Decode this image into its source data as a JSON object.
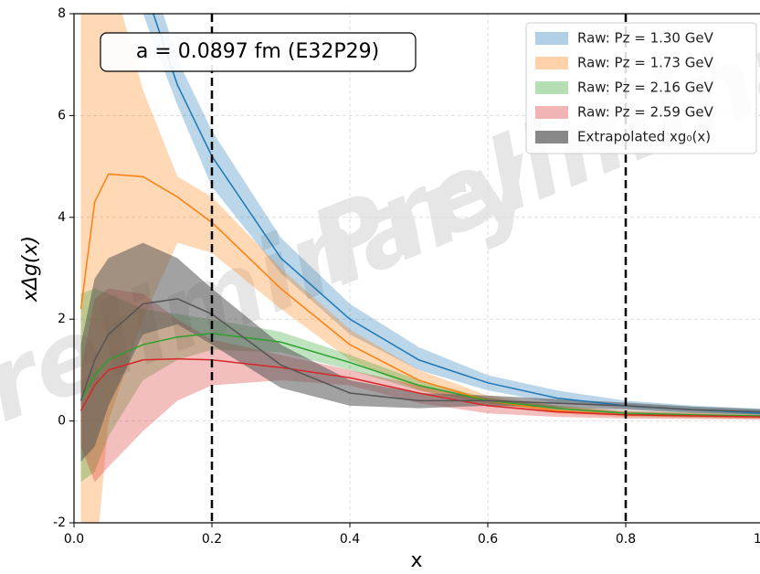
{
  "chart_data": {
    "type": "band",
    "annotation": "a = 0.0897 fm (E32P29)",
    "watermark": "Preliminary",
    "xlabel": "x",
    "ylabel": "xΔg(x)",
    "xlim": [
      0,
      1
    ],
    "ylim": [
      -2,
      8
    ],
    "xticks": [
      {
        "value": 0,
        "label": "0.0"
      },
      0.2,
      0.4,
      0.6,
      0.8,
      {
        "value": 1,
        "label": "1.0"
      }
    ],
    "yticks": [
      -2,
      0,
      2,
      4,
      6,
      8
    ],
    "grid": true,
    "legend": "upper right",
    "vlines": [
      0.2,
      0.8
    ],
    "x": [
      0.01,
      0.03,
      0.05,
      0.1,
      0.15,
      0.2,
      0.3,
      0.4,
      0.5,
      0.6,
      0.7,
      0.8,
      0.9,
      1.0
    ],
    "series": [
      {
        "name": "Raw: Pz = 1.30 GeV",
        "color": "#1f77b4",
        "values": [
          null,
          null,
          null,
          8.6,
          6.6,
          5.2,
          3.2,
          2.0,
          1.2,
          0.75,
          0.45,
          0.3,
          0.22,
          0.15
        ],
        "lower": [
          null,
          null,
          null,
          8.0,
          6.2,
          4.6,
          2.9,
          1.7,
          1.0,
          0.6,
          0.35,
          0.25,
          0.18,
          0.12
        ],
        "upper": [
          null,
          null,
          null,
          9.3,
          7.1,
          5.7,
          3.6,
          2.3,
          1.45,
          0.9,
          0.6,
          0.4,
          0.3,
          0.24
        ]
      },
      {
        "name": "Raw: Pz = 1.73 GeV",
        "color": "#ff7f0e",
        "values": [
          2.2,
          4.3,
          4.85,
          4.8,
          4.4,
          3.9,
          2.6,
          1.5,
          0.8,
          0.4,
          0.2,
          0.12,
          0.1,
          0.08
        ],
        "lower": [
          -3,
          -3,
          0,
          2.0,
          3.5,
          3.3,
          2.2,
          1.2,
          0.6,
          0.3,
          0.15,
          0.08,
          0.06,
          0.04
        ],
        "upper": [
          9,
          9,
          9,
          6.5,
          4.8,
          4.4,
          3.0,
          1.8,
          1.0,
          0.5,
          0.3,
          0.18,
          0.14,
          0.12
        ]
      },
      {
        "name": "Raw: Pz = 2.16 GeV",
        "color": "#2ca02c",
        "values": [
          0.4,
          0.9,
          1.2,
          1.5,
          1.65,
          1.72,
          1.55,
          1.15,
          0.7,
          0.4,
          0.25,
          0.15,
          0.12,
          0.1
        ],
        "lower": [
          -1.2,
          -1.0,
          -0.3,
          0.8,
          1.2,
          1.4,
          1.35,
          1.0,
          0.6,
          0.35,
          0.2,
          0.1,
          0.07,
          0.05
        ],
        "upper": [
          2.5,
          2.6,
          2.5,
          2.2,
          2.1,
          2.0,
          1.75,
          1.3,
          0.8,
          0.45,
          0.3,
          0.2,
          0.17,
          0.15
        ]
      },
      {
        "name": "Raw: Pz = 2.59 GeV",
        "color": "#d62728",
        "values": [
          0.2,
          0.7,
          1.0,
          1.2,
          1.22,
          1.2,
          1.05,
          0.85,
          0.55,
          0.3,
          0.18,
          0.12,
          0.1,
          0.08
        ],
        "lower": [
          -0.5,
          -1.2,
          -0.9,
          -0.2,
          0.4,
          0.7,
          0.8,
          0.7,
          0.35,
          0.15,
          0.08,
          0.05,
          0.04,
          0.03
        ],
        "upper": [
          1.0,
          2.4,
          2.6,
          2.5,
          2.0,
          1.6,
          1.3,
          1.0,
          0.7,
          0.45,
          0.28,
          0.2,
          0.16,
          0.13
        ]
      },
      {
        "name": "Extrapolated xg₀(x)",
        "color": "#555555",
        "values": [
          0.4,
          1.2,
          1.7,
          2.3,
          2.4,
          2.1,
          1.1,
          0.55,
          0.4,
          0.4,
          0.35,
          0.3,
          0.22,
          0.18
        ],
        "lower": [
          -0.8,
          -0.5,
          0.3,
          1.7,
          1.9,
          1.5,
          0.65,
          0.3,
          0.25,
          0.3,
          0.27,
          0.22,
          0.16,
          0.13
        ],
        "upper": [
          1.5,
          2.8,
          3.2,
          3.5,
          3.2,
          2.6,
          1.5,
          0.8,
          0.55,
          0.5,
          0.43,
          0.36,
          0.28,
          0.23
        ]
      }
    ]
  }
}
